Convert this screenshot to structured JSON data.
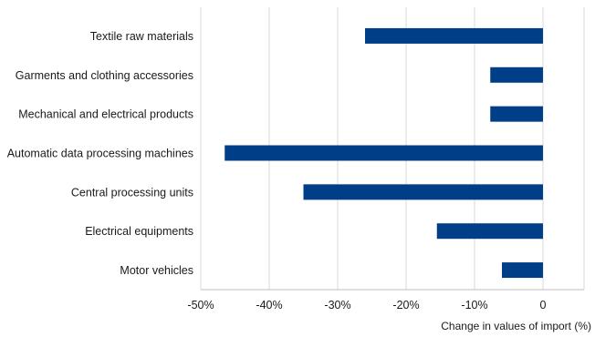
{
  "chart_data": {
    "type": "bar",
    "orientation": "horizontal",
    "categories": [
      "Textile raw materials",
      "Garments and clothing accessories",
      "Mechanical and electrical products",
      "Automatic data processing machines",
      "Central processing units",
      "Electrical equipments",
      "Motor vehicles"
    ],
    "values": [
      -26,
      -7.7,
      -7.7,
      -46.5,
      -35,
      -15.5,
      -6
    ],
    "bar_color": "#003f87",
    "xlim": [
      -50,
      6
    ],
    "xticks": [
      -50,
      -40,
      -30,
      -20,
      -10,
      0
    ],
    "xtick_labels": [
      "-50%",
      "-40%",
      "-30%",
      "-20%",
      "-10%",
      "0"
    ],
    "xlabel": "Change in values of import (%)",
    "ylabel": "",
    "title": "",
    "grid": "vertical"
  }
}
